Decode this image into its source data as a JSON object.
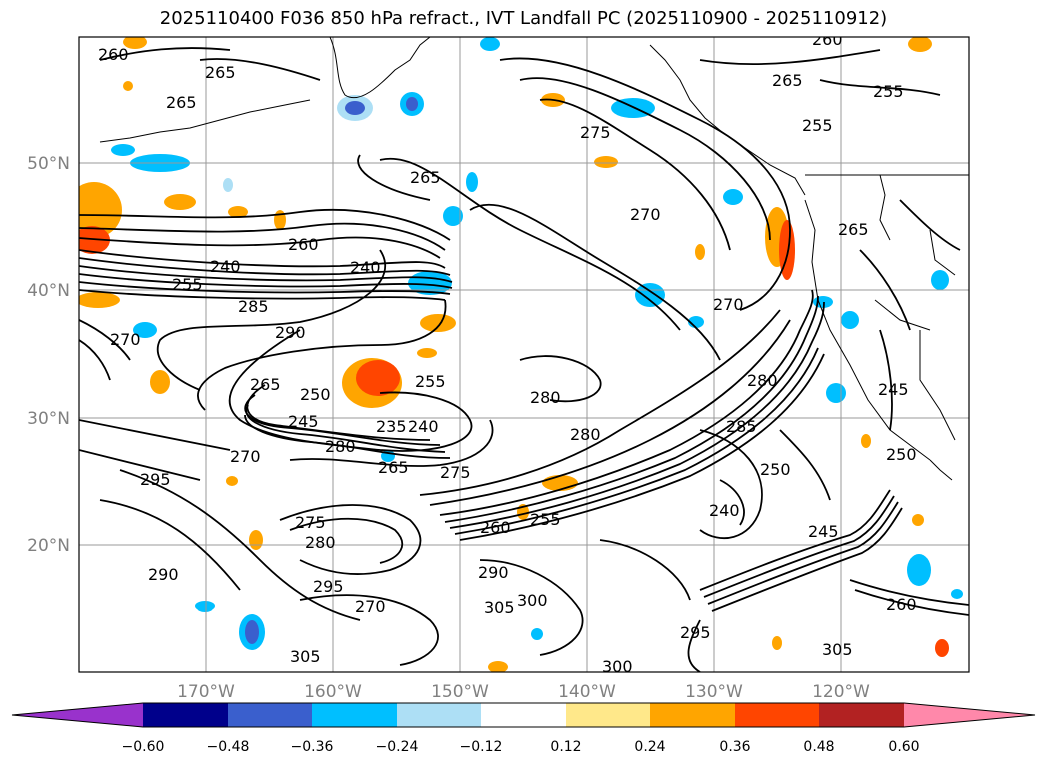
{
  "title": "2025110400 F036 850 hPa refract., IVT Landfall PC (2025110900 - 2025110912)",
  "colors": {
    "background": "#ffffff",
    "grid": "#999999",
    "contour": "#000000",
    "tick_label": "#808080"
  },
  "map": {
    "lat_ticks": [
      "50°N",
      "40°N",
      "30°N",
      "20°N"
    ],
    "lon_ticks": [
      "170°W",
      "160°W",
      "150°W",
      "140°W",
      "130°W",
      "120°W"
    ]
  },
  "contour_labels": [
    "260",
    "265",
    "265",
    "260",
    "255",
    "265",
    "255",
    "275",
    "270",
    "265",
    "270",
    "240",
    "260",
    "240",
    "255",
    "285",
    "290",
    "270",
    "280",
    "265",
    "250",
    "255",
    "235",
    "245",
    "280",
    "265",
    "240",
    "270",
    "280",
    "275",
    "285",
    "295",
    "280",
    "260",
    "255",
    "250",
    "240",
    "245",
    "290",
    "295",
    "300",
    "305",
    "305",
    "300",
    "275",
    "305",
    "270",
    "290",
    "280",
    "295",
    "250",
    "265",
    "260",
    "245"
  ],
  "colorbar": {
    "ticks": [
      "−0.60",
      "−0.48",
      "−0.36",
      "−0.24",
      "−0.12",
      "0.12",
      "0.24",
      "0.36",
      "0.48",
      "0.60"
    ],
    "bins": [
      "#9932CC",
      "#00008B",
      "#3A5FCD",
      "#00BFFF",
      "#ADDFF5",
      "#FFFFFF",
      "#FFE88A",
      "#FFA500",
      "#FF4500",
      "#B22222",
      "#FF88AA"
    ]
  }
}
